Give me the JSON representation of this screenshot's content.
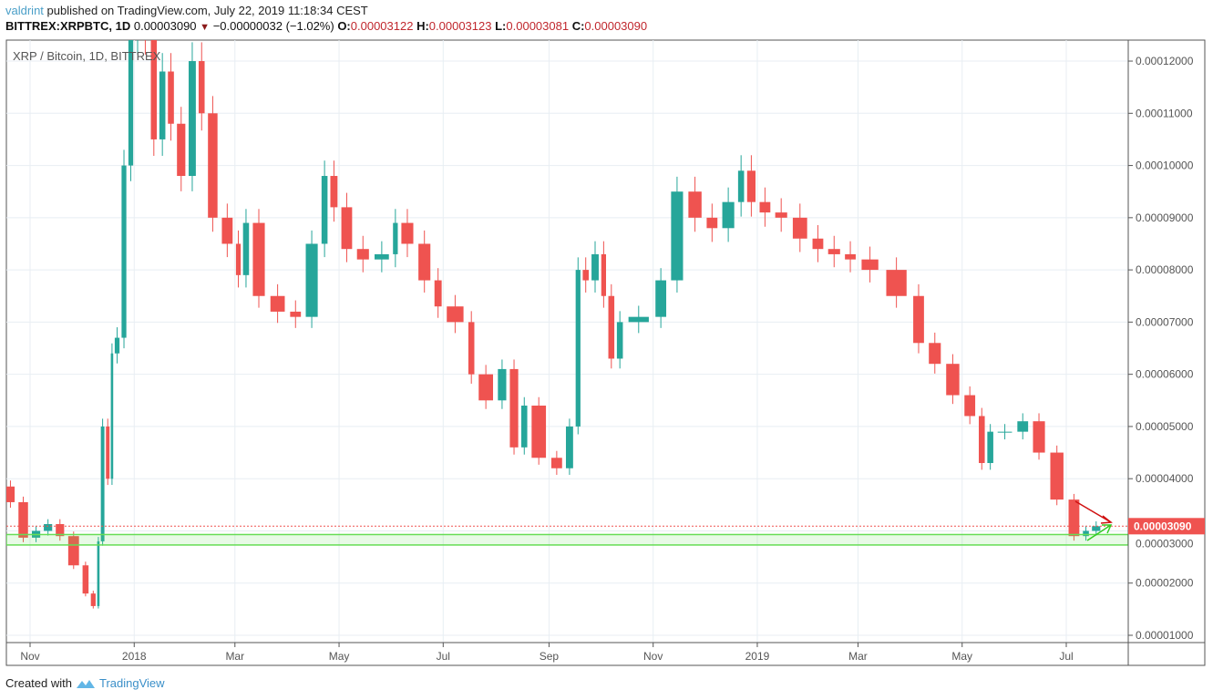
{
  "header": {
    "user": "valdrint",
    "published_text": "published on TradingView.com, July 22, 2019 11:18:34 CEST",
    "symbol": "BITTREX:XRPBTC, 1D",
    "last": "0.00003090",
    "change": "−0.00000032 (−1.02%)",
    "o_label": "O:",
    "o": "0.00003122",
    "h_label": "H:",
    "h": "0.00003123",
    "l_label": "L:",
    "l": "0.00003081",
    "c_label": "C:",
    "c": "0.00003090",
    "direction_icon": "triangle-down-icon"
  },
  "footer": {
    "created_with": "Created with",
    "brand": "TradingView"
  },
  "chart_data": {
    "type": "candlestick",
    "title": "XRP / Bitcoin, 1D, BITTREX",
    "ylim": [
      8.5e-06,
      0.0001225
    ],
    "yticks": [
      "0.00012000",
      "0.00011000",
      "0.00010000",
      "0.00009000",
      "0.00008000",
      "0.00007000",
      "0.00006000",
      "0.00005000",
      "0.00004000",
      "0.00003000",
      "0.00002000",
      "0.00001000"
    ],
    "ytick_values": [
      0.00012,
      0.00011,
      0.0001,
      9e-05,
      8e-05,
      7e-05,
      6e-05,
      5e-05,
      4e-05,
      3e-05,
      2e-05,
      1e-05
    ],
    "xticks": [
      {
        "label": "Nov",
        "date": "2017-11-01"
      },
      {
        "label": "2018",
        "date": "2018-01-01"
      },
      {
        "label": "Mar",
        "date": "2018-03-01"
      },
      {
        "label": "May",
        "date": "2018-05-01"
      },
      {
        "label": "Jul",
        "date": "2018-07-01"
      },
      {
        "label": "Sep",
        "date": "2018-09-01"
      },
      {
        "label": "Nov",
        "date": "2018-11-01"
      },
      {
        "label": "2019",
        "date": "2019-01-01"
      },
      {
        "label": "Mar",
        "date": "2019-03-01"
      },
      {
        "label": "May",
        "date": "2019-05-01"
      },
      {
        "label": "Jul",
        "date": "2019-07-01"
      }
    ],
    "grid": true,
    "up_color": "#26a69a",
    "down_color": "#ef5350",
    "last_price": 3.09e-05,
    "last_price_label": "0.00003090",
    "support_zone": [
      2.73e-05,
      2.93e-05
    ],
    "support_color": "#66dd55",
    "closes": [
      [
        "2017-10-17",
        3.85e-05
      ],
      [
        "2017-10-24",
        3.55e-05
      ],
      [
        "2017-11-01",
        2.87e-05
      ],
      [
        "2017-11-08",
        3e-05
      ],
      [
        "2017-11-15",
        3.13e-05
      ],
      [
        "2017-11-22",
        2.9e-05
      ],
      [
        "2017-12-01",
        2.34e-05
      ],
      [
        "2017-12-06",
        1.8e-05
      ],
      [
        "2017-12-10",
        1.56e-05
      ],
      [
        "2017-12-12",
        2.8e-05
      ],
      [
        "2017-12-15",
        5e-05
      ],
      [
        "2017-12-18",
        4e-05
      ],
      [
        "2017-12-20",
        6.4e-05
      ],
      [
        "2017-12-24",
        6.7e-05
      ],
      [
        "2017-12-28",
        0.0001
      ],
      [
        "2018-01-01",
        0.000125
      ],
      [
        "2018-01-05",
        0.000135
      ],
      [
        "2018-01-10",
        0.000125
      ],
      [
        "2018-01-15",
        0.000105
      ],
      [
        "2018-01-20",
        0.000118
      ],
      [
        "2018-01-25",
        0.000108
      ],
      [
        "2018-02-01",
        9.8e-05
      ],
      [
        "2018-02-07",
        0.00012
      ],
      [
        "2018-02-12",
        0.00011
      ],
      [
        "2018-02-20",
        9e-05
      ],
      [
        "2018-03-01",
        8.5e-05
      ],
      [
        "2018-03-05",
        7.9e-05
      ],
      [
        "2018-03-10",
        8.9e-05
      ],
      [
        "2018-03-20",
        7.5e-05
      ],
      [
        "2018-04-01",
        7.2e-05
      ],
      [
        "2018-04-10",
        7.1e-05
      ],
      [
        "2018-04-20",
        8.5e-05
      ],
      [
        "2018-04-25",
        9.8e-05
      ],
      [
        "2018-05-01",
        9.2e-05
      ],
      [
        "2018-05-10",
        8.4e-05
      ],
      [
        "2018-05-20",
        8.2e-05
      ],
      [
        "2018-06-01",
        8.3e-05
      ],
      [
        "2018-06-05",
        8.9e-05
      ],
      [
        "2018-06-15",
        8.5e-05
      ],
      [
        "2018-06-25",
        7.8e-05
      ],
      [
        "2018-07-01",
        7.3e-05
      ],
      [
        "2018-07-15",
        7e-05
      ],
      [
        "2018-07-20",
        6e-05
      ],
      [
        "2018-08-01",
        5.5e-05
      ],
      [
        "2018-08-08",
        6.1e-05
      ],
      [
        "2018-08-15",
        4.6e-05
      ],
      [
        "2018-08-20",
        5.4e-05
      ],
      [
        "2018-09-01",
        4.4e-05
      ],
      [
        "2018-09-10",
        4.2e-05
      ],
      [
        "2018-09-16",
        5e-05
      ],
      [
        "2018-09-20",
        8e-05
      ],
      [
        "2018-09-25",
        7.8e-05
      ],
      [
        "2018-10-01",
        8.3e-05
      ],
      [
        "2018-10-05",
        7.5e-05
      ],
      [
        "2018-10-10",
        6.3e-05
      ],
      [
        "2018-10-15",
        7e-05
      ],
      [
        "2018-11-01",
        7.1e-05
      ],
      [
        "2018-11-10",
        7.8e-05
      ],
      [
        "2018-11-20",
        9.5e-05
      ],
      [
        "2018-12-01",
        9e-05
      ],
      [
        "2018-12-10",
        8.8e-05
      ],
      [
        "2018-12-20",
        9.3e-05
      ],
      [
        "2018-12-25",
        9.9e-05
      ],
      [
        "2019-01-01",
        9.3e-05
      ],
      [
        "2019-01-10",
        9.1e-05
      ],
      [
        "2019-01-20",
        9e-05
      ],
      [
        "2019-02-01",
        8.6e-05
      ],
      [
        "2019-02-10",
        8.4e-05
      ],
      [
        "2019-02-20",
        8.3e-05
      ],
      [
        "2019-03-01",
        8.2e-05
      ],
      [
        "2019-03-15",
        8e-05
      ],
      [
        "2019-04-01",
        7.5e-05
      ],
      [
        "2019-04-10",
        6.6e-05
      ],
      [
        "2019-04-20",
        6.2e-05
      ],
      [
        "2019-05-01",
        5.6e-05
      ],
      [
        "2019-05-10",
        5.2e-05
      ],
      [
        "2019-05-15",
        4.3e-05
      ],
      [
        "2019-05-20",
        4.9e-05
      ],
      [
        "2019-06-01",
        4.9e-05
      ],
      [
        "2019-06-10",
        5.1e-05
      ],
      [
        "2019-06-20",
        4.5e-05
      ],
      [
        "2019-07-01",
        3.6e-05
      ],
      [
        "2019-07-10",
        2.9e-05
      ],
      [
        "2019-07-15",
        3e-05
      ],
      [
        "2019-07-22",
        3.09e-05
      ]
    ]
  }
}
